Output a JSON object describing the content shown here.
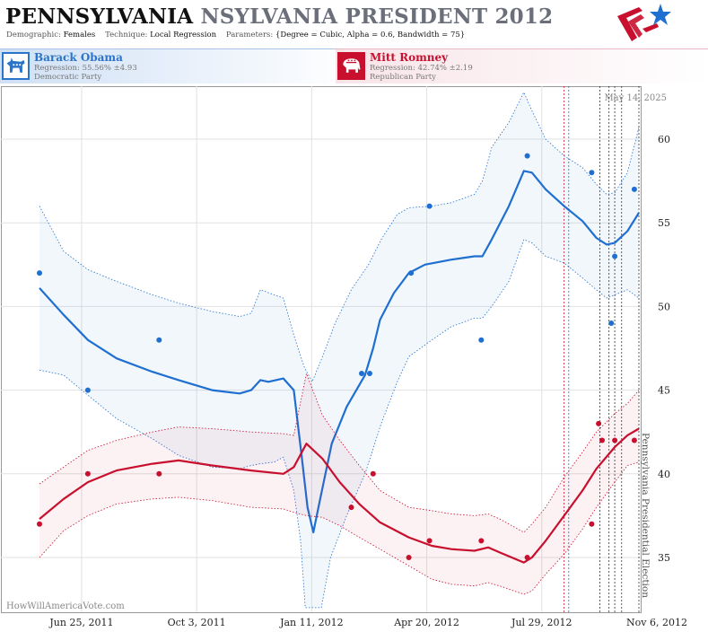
{
  "header": {
    "state": "PENNSYLVANIA",
    "title_rest": "NSYLVANIA PRESIDENT 2012",
    "demographic_label": "Demographic:",
    "demographic_value": "Females",
    "technique_label": "Technique:",
    "technique_value": "Local Regression",
    "parameters_label": "Parameters:",
    "parameters_value": "{Degree = Cubic, Alpha = 0.6, Bandwidth = 75}"
  },
  "candidates": {
    "dem": {
      "name": "Barack Obama",
      "regression": "Regression: 55.56% ±4.93",
      "party": "Democratic Party",
      "color": "#1f6fd1"
    },
    "rep": {
      "name": "Mitt Romney",
      "regression": "Regression: 42.74% ±2.19",
      "party": "Republican Party",
      "color": "#c8102e"
    }
  },
  "chart_data": {
    "type": "scatter",
    "date_label": "May 14, 2025",
    "watermark": "HowWillAmericaVote.com",
    "election_label": "Pennsylvania Presidential Election",
    "x_ticks": [
      {
        "date": "2011-06-25",
        "label": "Jun 25, 2011"
      },
      {
        "date": "2011-10-03",
        "label": "Oct 3, 2011"
      },
      {
        "date": "2012-01-11",
        "label": "Jan 11, 2012"
      },
      {
        "date": "2012-04-20",
        "label": "Apr 20, 2012"
      },
      {
        "date": "2012-07-29",
        "label": "Jul 29, 2012"
      },
      {
        "date": "2012-11-06",
        "label": "Nov 6, 2012"
      }
    ],
    "xlim": [
      "2011-06-04",
      "2012-11-06"
    ],
    "ylim": [
      32,
      63
    ],
    "y_ticks": [
      35,
      40,
      45,
      50,
      55,
      60
    ],
    "grid": true,
    "vertical_markers": [
      {
        "date": "2012-09-02",
        "color": "#c8102e"
      },
      {
        "date": "2012-09-06",
        "color": "#1f6fd1"
      },
      {
        "date": "2012-10-03",
        "color": "#333333"
      },
      {
        "date": "2012-10-11",
        "color": "#333333"
      },
      {
        "date": "2012-10-16",
        "color": "#333333"
      },
      {
        "date": "2012-10-22",
        "color": "#333333"
      },
      {
        "date": "2012-11-06",
        "color": "#333333"
      }
    ],
    "series": [
      {
        "name": "Barack Obama",
        "color": "#1f6fd1",
        "points": [
          [
            "2011-06-04",
            52
          ],
          [
            "2011-07-16",
            45
          ],
          [
            "2011-09-16",
            48
          ],
          [
            "2012-03-10",
            46
          ],
          [
            "2012-03-17",
            46
          ],
          [
            "2012-04-22",
            52
          ],
          [
            "2012-05-08",
            56
          ],
          [
            "2012-06-22",
            48
          ],
          [
            "2012-08-01",
            59
          ],
          [
            "2012-09-26",
            58
          ],
          [
            "2012-10-13",
            49
          ],
          [
            "2012-10-16",
            53
          ],
          [
            "2012-11-02",
            57
          ]
        ],
        "trend": [
          [
            "2011-06-04",
            51.1
          ],
          [
            "2011-06-25",
            49.5
          ],
          [
            "2011-07-16",
            48.0
          ],
          [
            "2011-08-10",
            46.9
          ],
          [
            "2011-09-10",
            46.1
          ],
          [
            "2011-10-03",
            45.6
          ],
          [
            "2011-11-01",
            45.0
          ],
          [
            "2011-11-25",
            44.8
          ],
          [
            "2011-12-05",
            45.0
          ],
          [
            "2011-12-13",
            45.6
          ],
          [
            "2011-12-20",
            45.5
          ],
          [
            "2012-01-02",
            45.7
          ],
          [
            "2012-01-11",
            45.0
          ],
          [
            "2012-01-18",
            41.0
          ],
          [
            "2012-01-23",
            38.0
          ],
          [
            "2012-01-28",
            36.5
          ],
          [
            "2012-02-03",
            38.5
          ],
          [
            "2012-02-13",
            41.8
          ],
          [
            "2012-02-26",
            44.0
          ],
          [
            "2012-03-13",
            45.9
          ],
          [
            "2012-03-20",
            47.5
          ],
          [
            "2012-03-26",
            49.2
          ],
          [
            "2012-04-07",
            50.8
          ],
          [
            "2012-04-20",
            52.0
          ],
          [
            "2012-05-04",
            52.5
          ],
          [
            "2012-05-27",
            52.8
          ],
          [
            "2012-06-16",
            53.0
          ],
          [
            "2012-06-23",
            53.0
          ],
          [
            "2012-07-01",
            54.0
          ],
          [
            "2012-07-16",
            56.0
          ],
          [
            "2012-07-29",
            58.1
          ],
          [
            "2012-08-05",
            58.0
          ],
          [
            "2012-08-17",
            57.0
          ],
          [
            "2012-09-02",
            56.0
          ],
          [
            "2012-09-18",
            55.1
          ],
          [
            "2012-09-30",
            54.1
          ],
          [
            "2012-10-09",
            53.7
          ],
          [
            "2012-10-16",
            53.8
          ],
          [
            "2012-10-27",
            54.5
          ],
          [
            "2012-11-06",
            55.6
          ]
        ],
        "band_upper": [
          [
            "2011-06-04",
            56.0
          ],
          [
            "2011-06-25",
            53.3
          ],
          [
            "2011-07-16",
            52.2
          ],
          [
            "2011-08-10",
            51.5
          ],
          [
            "2011-09-10",
            50.7
          ],
          [
            "2011-10-03",
            50.2
          ],
          [
            "2011-11-01",
            49.7
          ],
          [
            "2011-11-25",
            49.4
          ],
          [
            "2011-12-05",
            49.6
          ],
          [
            "2011-12-13",
            51.0
          ],
          [
            "2011-12-25",
            50.7
          ],
          [
            "2012-01-02",
            50.5
          ],
          [
            "2012-01-11",
            48.3
          ],
          [
            "2012-01-20",
            46.4
          ],
          [
            "2012-01-27",
            45.5
          ],
          [
            "2012-02-05",
            47.0
          ],
          [
            "2012-02-16",
            49.0
          ],
          [
            "2012-03-01",
            51.0
          ],
          [
            "2012-03-16",
            52.5
          ],
          [
            "2012-03-27",
            54.0
          ],
          [
            "2012-04-10",
            55.5
          ],
          [
            "2012-04-20",
            55.9
          ],
          [
            "2012-05-10",
            56.0
          ],
          [
            "2012-05-27",
            56.2
          ],
          [
            "2012-06-16",
            56.7
          ],
          [
            "2012-06-23",
            57.5
          ],
          [
            "2012-07-01",
            59.5
          ],
          [
            "2012-07-16",
            61.0
          ],
          [
            "2012-07-29",
            62.8
          ],
          [
            "2012-08-05",
            61.7
          ],
          [
            "2012-08-17",
            60.0
          ],
          [
            "2012-09-02",
            59.0
          ],
          [
            "2012-09-18",
            58.3
          ],
          [
            "2012-09-30",
            57.3
          ],
          [
            "2012-10-09",
            56.7
          ],
          [
            "2012-10-16",
            56.8
          ],
          [
            "2012-10-27",
            58.0
          ],
          [
            "2012-11-06",
            60.7
          ]
        ],
        "band_lower": [
          [
            "2011-06-04",
            46.2
          ],
          [
            "2011-06-25",
            45.9
          ],
          [
            "2011-07-16",
            44.7
          ],
          [
            "2011-08-10",
            43.3
          ],
          [
            "2011-09-10",
            42.1
          ],
          [
            "2011-10-03",
            41.1
          ],
          [
            "2011-11-01",
            40.4
          ],
          [
            "2011-11-25",
            40.3
          ],
          [
            "2011-12-05",
            40.5
          ],
          [
            "2011-12-13",
            40.6
          ],
          [
            "2011-12-25",
            40.7
          ],
          [
            "2012-01-02",
            41.0
          ],
          [
            "2012-01-11",
            39.0
          ],
          [
            "2012-01-17",
            36.0
          ],
          [
            "2012-01-21",
            32.0
          ],
          [
            "2012-02-04",
            32.0
          ],
          [
            "2012-02-12",
            35.0
          ],
          [
            "2012-02-26",
            37.5
          ],
          [
            "2012-03-13",
            40.0
          ],
          [
            "2012-03-27",
            43.0
          ],
          [
            "2012-04-10",
            45.5
          ],
          [
            "2012-04-20",
            47.0
          ],
          [
            "2012-05-10",
            48.0
          ],
          [
            "2012-05-27",
            48.8
          ],
          [
            "2012-06-16",
            49.3
          ],
          [
            "2012-06-23",
            49.3
          ],
          [
            "2012-07-01",
            50.0
          ],
          [
            "2012-07-16",
            51.5
          ],
          [
            "2012-07-29",
            54.0
          ],
          [
            "2012-08-05",
            53.8
          ],
          [
            "2012-08-17",
            53.0
          ],
          [
            "2012-09-02",
            52.6
          ],
          [
            "2012-09-18",
            51.7
          ],
          [
            "2012-09-30",
            51.0
          ],
          [
            "2012-10-09",
            50.5
          ],
          [
            "2012-10-16",
            50.7
          ],
          [
            "2012-10-27",
            51.0
          ],
          [
            "2012-11-06",
            50.5
          ]
        ]
      },
      {
        "name": "Mitt Romney",
        "color": "#c8102e",
        "points": [
          [
            "2011-06-04",
            37
          ],
          [
            "2011-07-16",
            40
          ],
          [
            "2011-09-16",
            40
          ],
          [
            "2012-03-01",
            38
          ],
          [
            "2012-03-20",
            40
          ],
          [
            "2012-04-20",
            35
          ],
          [
            "2012-05-08",
            36
          ],
          [
            "2012-06-22",
            36
          ],
          [
            "2012-08-01",
            35
          ],
          [
            "2012-09-26",
            37
          ],
          [
            "2012-10-02",
            43
          ],
          [
            "2012-10-05",
            42
          ],
          [
            "2012-10-16",
            42
          ],
          [
            "2012-11-02",
            42
          ]
        ],
        "trend": [
          [
            "2011-06-04",
            37.3
          ],
          [
            "2011-06-25",
            38.5
          ],
          [
            "2011-07-16",
            39.5
          ],
          [
            "2011-08-10",
            40.2
          ],
          [
            "2011-09-10",
            40.6
          ],
          [
            "2011-10-03",
            40.8
          ],
          [
            "2011-11-01",
            40.5
          ],
          [
            "2011-12-05",
            40.2
          ],
          [
            "2012-01-02",
            40.0
          ],
          [
            "2012-01-11",
            40.4
          ],
          [
            "2012-01-22",
            41.8
          ],
          [
            "2012-02-05",
            40.9
          ],
          [
            "2012-02-20",
            39.5
          ],
          [
            "2012-03-08",
            38.2
          ],
          [
            "2012-03-26",
            37.1
          ],
          [
            "2012-04-20",
            36.2
          ],
          [
            "2012-05-10",
            35.7
          ],
          [
            "2012-05-27",
            35.5
          ],
          [
            "2012-06-16",
            35.4
          ],
          [
            "2012-06-28",
            35.6
          ],
          [
            "2012-07-08",
            35.3
          ],
          [
            "2012-07-29",
            34.7
          ],
          [
            "2012-08-05",
            35.0
          ],
          [
            "2012-08-17",
            36.0
          ],
          [
            "2012-09-02",
            37.5
          ],
          [
            "2012-09-18",
            39.0
          ],
          [
            "2012-09-30",
            40.3
          ],
          [
            "2012-10-16",
            41.6
          ],
          [
            "2012-10-27",
            42.3
          ],
          [
            "2012-11-06",
            42.7
          ]
        ],
        "band_upper": [
          [
            "2011-06-04",
            39.4
          ],
          [
            "2011-06-25",
            40.4
          ],
          [
            "2011-07-16",
            41.4
          ],
          [
            "2011-08-10",
            42.0
          ],
          [
            "2011-09-10",
            42.5
          ],
          [
            "2011-10-03",
            42.8
          ],
          [
            "2011-11-01",
            42.7
          ],
          [
            "2011-12-05",
            42.5
          ],
          [
            "2012-01-02",
            42.4
          ],
          [
            "2012-01-11",
            42.3
          ],
          [
            "2012-01-22",
            46.0
          ],
          [
            "2012-02-05",
            43.5
          ],
          [
            "2012-02-20",
            42.0
          ],
          [
            "2012-03-08",
            40.5
          ],
          [
            "2012-03-26",
            39.0
          ],
          [
            "2012-04-20",
            38.0
          ],
          [
            "2012-05-10",
            37.8
          ],
          [
            "2012-05-27",
            37.6
          ],
          [
            "2012-06-16",
            37.5
          ],
          [
            "2012-06-28",
            37.6
          ],
          [
            "2012-07-08",
            37.3
          ],
          [
            "2012-07-29",
            36.5
          ],
          [
            "2012-08-05",
            37.0
          ],
          [
            "2012-08-17",
            38.0
          ],
          [
            "2012-09-02",
            39.8
          ],
          [
            "2012-09-18",
            41.3
          ],
          [
            "2012-09-30",
            42.5
          ],
          [
            "2012-10-16",
            43.6
          ],
          [
            "2012-10-27",
            44.2
          ],
          [
            "2012-11-06",
            45.0
          ]
        ],
        "band_lower": [
          [
            "2011-06-04",
            35.0
          ],
          [
            "2011-06-25",
            36.6
          ],
          [
            "2011-07-16",
            37.5
          ],
          [
            "2011-08-10",
            38.2
          ],
          [
            "2011-09-10",
            38.5
          ],
          [
            "2011-10-03",
            38.6
          ],
          [
            "2011-11-01",
            38.4
          ],
          [
            "2011-12-05",
            38.0
          ],
          [
            "2012-01-02",
            37.9
          ],
          [
            "2012-01-11",
            37.7
          ],
          [
            "2012-01-22",
            37.5
          ],
          [
            "2012-02-05",
            37.4
          ],
          [
            "2012-02-20",
            36.9
          ],
          [
            "2012-03-08",
            36.2
          ],
          [
            "2012-03-26",
            35.5
          ],
          [
            "2012-04-20",
            34.5
          ],
          [
            "2012-05-10",
            33.7
          ],
          [
            "2012-05-27",
            33.4
          ],
          [
            "2012-06-16",
            33.3
          ],
          [
            "2012-06-28",
            33.5
          ],
          [
            "2012-07-08",
            33.3
          ],
          [
            "2012-07-29",
            32.8
          ],
          [
            "2012-08-05",
            33.0
          ],
          [
            "2012-08-17",
            34.0
          ],
          [
            "2012-09-02",
            35.2
          ],
          [
            "2012-09-18",
            36.7
          ],
          [
            "2012-09-30",
            38.0
          ],
          [
            "2012-10-16",
            39.5
          ],
          [
            "2012-10-27",
            40.5
          ],
          [
            "2012-11-06",
            40.7
          ]
        ]
      }
    ]
  }
}
